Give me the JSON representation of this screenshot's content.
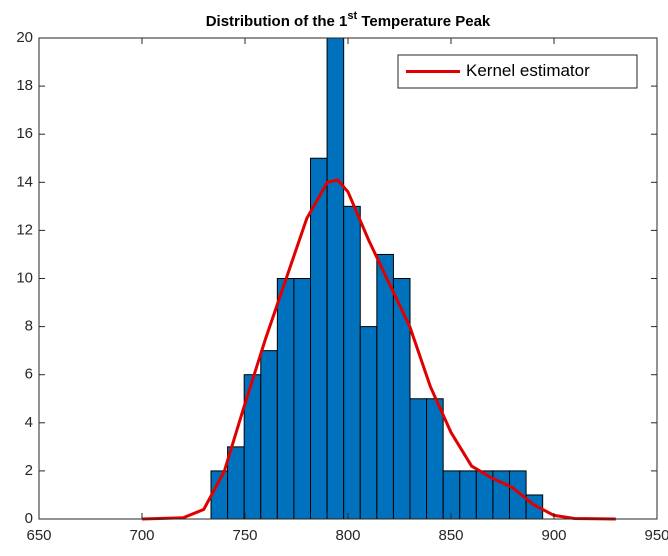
{
  "chart_data": {
    "type": "histogram",
    "title": [
      "Distribution of the 1",
      "st",
      " Temperature Peak"
    ],
    "bins": [
      733.5,
      741.55,
      749.6,
      757.65,
      765.7,
      773.75,
      781.8,
      789.85,
      797.9,
      805.95,
      814,
      822.05,
      830.1,
      838.15,
      846.2,
      854.25,
      862.3,
      870.35,
      878.4,
      886.45,
      894.5
    ],
    "values": [
      2,
      3,
      6,
      7,
      10,
      10,
      15,
      20,
      13,
      8,
      11,
      10,
      5,
      5,
      2,
      2,
      2,
      2,
      2,
      1
    ],
    "color": "#0072bd",
    "lines": [
      {
        "name": "Kernel estimator",
        "color": "#e00000",
        "x": [
          700,
          720,
          730,
          740,
          750,
          760,
          770,
          780,
          790,
          795,
          800,
          810,
          820,
          830,
          840,
          850,
          860,
          870,
          880,
          890,
          900,
          910,
          930
        ],
        "values": [
          0,
          0.05,
          0.4,
          2,
          4.8,
          7.5,
          10,
          12.5,
          14,
          14.1,
          13.6,
          11.6,
          9.8,
          8,
          5.5,
          3.6,
          2.2,
          1.7,
          1.3,
          0.6,
          0.15,
          0.02,
          0
        ]
      }
    ],
    "xlim": [
      650,
      950
    ],
    "xticks": [
      650,
      700,
      750,
      800,
      850,
      900,
      950
    ],
    "ylim": [
      0,
      20
    ],
    "yticks": [
      0,
      2,
      4,
      6,
      8,
      10,
      12,
      14,
      16,
      18,
      20
    ],
    "legend": "upper right"
  }
}
